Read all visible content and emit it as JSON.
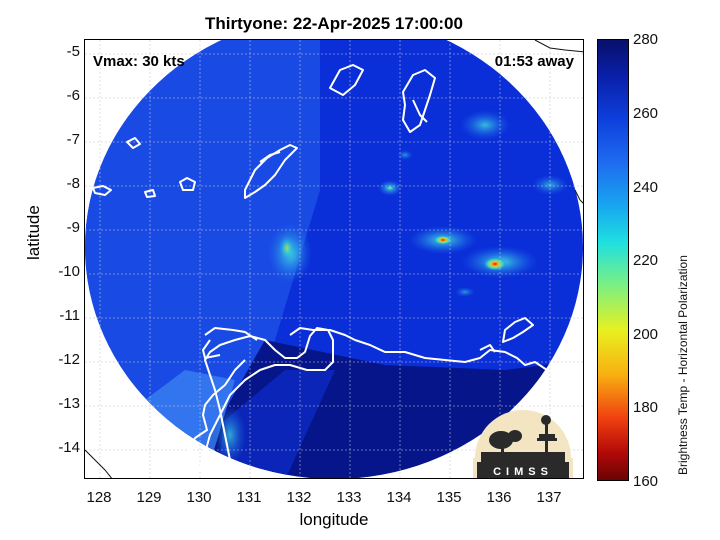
{
  "header": {
    "title": "Thirtyone: 22-Apr-2025 17:00:00",
    "vmax": "Vmax: 30 kts",
    "away": "01:53 away"
  },
  "axes": {
    "xlabel": "longitude",
    "ylabel": "latitude",
    "xticks": [
      "128",
      "129",
      "130",
      "131",
      "132",
      "133",
      "134",
      "135",
      "136",
      "137"
    ],
    "yticks": [
      "-5",
      "-6",
      "-7",
      "-8",
      "-9",
      "-10",
      "-11",
      "-12",
      "-13",
      "-14"
    ],
    "xlim": [
      127.7,
      137.7
    ],
    "ylim": [
      -14.7,
      -4.7
    ],
    "grid": true
  },
  "colorbar": {
    "label": "Brightness Temp - Horizontal Polarization",
    "ticks": [
      "280",
      "260",
      "240",
      "220",
      "200",
      "180",
      "160"
    ],
    "range": [
      160,
      280
    ],
    "colormap": "jet"
  },
  "logo": {
    "text": "CIMSS"
  },
  "colors": {
    "field_base": "#0a2fd8",
    "field_dark": "#061a8a",
    "coastline": "#ffffff",
    "grid": "#c8c8c8"
  }
}
